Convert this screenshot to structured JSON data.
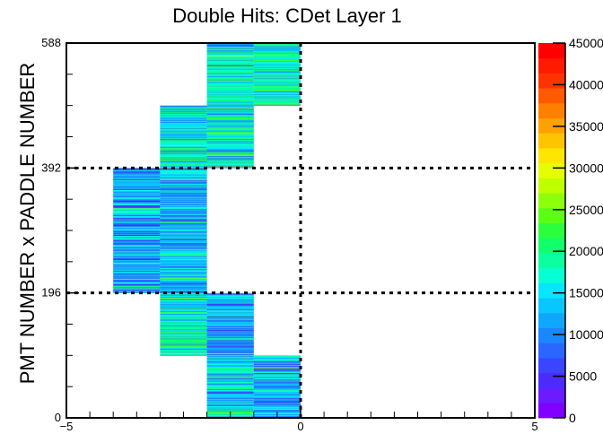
{
  "chart_data": {
    "type": "heatmap",
    "title": "Double Hits: CDet Layer 1",
    "xlabel": "",
    "ylabel": "PMT NUMBER x PADDLE NUMBER",
    "xlim": [
      -5,
      5
    ],
    "ylim": [
      0,
      588
    ],
    "x_ticks": [
      "−5",
      "0",
      "5"
    ],
    "y_ticks": [
      "0",
      "196",
      "392",
      "588"
    ],
    "zlim": [
      0,
      45000
    ],
    "z_ticks": [
      "0",
      "5000",
      "10000",
      "15000",
      "20000",
      "25000",
      "30000",
      "35000",
      "40000",
      "45000"
    ],
    "dashed_lines": {
      "x": [
        0
      ],
      "y": [
        196,
        392
      ]
    },
    "palette": [
      "#7f00ff",
      "#6a1bff",
      "#4b2bff",
      "#3b44ff",
      "#2a66ff",
      "#1a86ff",
      "#0fa6ff",
      "#09c6ff",
      "#06e6ff",
      "#07ffd4",
      "#0bff9f",
      "#10ff6a",
      "#2bff3d",
      "#5cff14",
      "#8cff0a",
      "#bfff00",
      "#e6ff00",
      "#ffe600",
      "#ffc400",
      "#ffa100",
      "#ff7f00",
      "#ff5a00",
      "#ff3300",
      "#ff1a00",
      "#ff0000"
    ],
    "columns": [
      {
        "x_range": [
          -4,
          -3
        ],
        "y_range": [
          196,
          392
        ],
        "z_mean": 11000
      },
      {
        "x_range": [
          -3,
          -2
        ],
        "y_range": [
          98,
          196
        ],
        "z_mean": 16000
      },
      {
        "x_range": [
          -3,
          -2
        ],
        "y_range": [
          196,
          392
        ],
        "z_mean": 12500
      },
      {
        "x_range": [
          -3,
          -2
        ],
        "y_range": [
          392,
          490
        ],
        "z_mean": 16000
      },
      {
        "x_range": [
          -2,
          -1
        ],
        "y_range": [
          0,
          98
        ],
        "z_mean": 13500
      },
      {
        "x_range": [
          -2,
          -1
        ],
        "y_range": [
          98,
          196
        ],
        "z_mean": 11500
      },
      {
        "x_range": [
          -2,
          -1
        ],
        "y_range": [
          392,
          588
        ],
        "z_mean": 15500
      },
      {
        "x_range": [
          -1,
          0
        ],
        "y_range": [
          0,
          98
        ],
        "z_mean": 12000
      },
      {
        "x_range": [
          -1,
          0
        ],
        "y_range": [
          490,
          588
        ],
        "z_mean": 17500
      }
    ]
  }
}
